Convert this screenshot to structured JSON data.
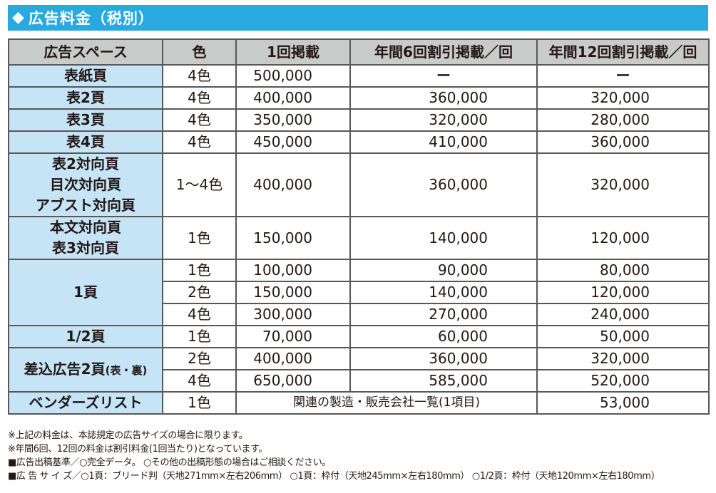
{
  "title": "広告料金（税別）",
  "icon": "diamond-icon",
  "colors": {
    "title_bar": "#29a9e0",
    "header_bg": "#c9caca",
    "space_bg": "#c5e4f6"
  },
  "headers": [
    "広告スペース",
    "色",
    "1回掲載",
    "年間6回割引掲載／回",
    "年間12回割引掲載／回"
  ],
  "rows": {
    "hyoshi": {
      "space": "表紙頁",
      "color": "4色",
      "p1": "500,000",
      "p6": "ー",
      "p12": "ー"
    },
    "hyo2": {
      "space": "表2頁",
      "color": "4色",
      "p1": "400,000",
      "p6": "360,000",
      "p12": "320,000"
    },
    "hyo3": {
      "space": "表3頁",
      "color": "4色",
      "p1": "350,000",
      "p6": "320,000",
      "p12": "280,000"
    },
    "hyo4": {
      "space": "表4頁",
      "color": "4色",
      "p1": "450,000",
      "p6": "410,000",
      "p12": "360,000"
    },
    "taiko": {
      "space_lines": [
        "表2対向頁",
        "目次対向頁",
        "アブスト対向頁"
      ],
      "color": "1〜4色",
      "p1": "400,000",
      "p6": "360,000",
      "p12": "320,000"
    },
    "honbun": {
      "space_lines": [
        "本文対向頁",
        "表3対向頁"
      ],
      "color": "1色",
      "p1": "150,000",
      "p6": "140,000",
      "p12": "120,000"
    },
    "page1": {
      "space": "1頁",
      "sub": [
        {
          "color": "1色",
          "p1": "100,000",
          "p6": "90,000",
          "p12": "80,000"
        },
        {
          "color": "2色",
          "p1": "150,000",
          "p6": "140,000",
          "p12": "120,000"
        },
        {
          "color": "4色",
          "p1": "300,000",
          "p6": "270,000",
          "p12": "240,000"
        }
      ]
    },
    "half": {
      "space": "1/2頁",
      "color": "1色",
      "p1": "70,000",
      "p6": "60,000",
      "p12": "50,000"
    },
    "insert": {
      "space": "差込広告2頁",
      "space_small": "(表・裏)",
      "sub": [
        {
          "color": "2色",
          "p1": "400,000",
          "p6": "360,000",
          "p12": "320,000"
        },
        {
          "color": "4色",
          "p1": "650,000",
          "p6": "585,000",
          "p12": "520,000"
        }
      ]
    },
    "vendor": {
      "space": "ベンダーズリスト",
      "color": "1色",
      "merged": "関連の製造・販売会社一覧(1項目)",
      "p12": "53,000"
    }
  },
  "notes": [
    "※上記の料金は、本誌規定の広告サイズの場合に限ります。",
    "※年間6回、12回の料金は割引料金(1回当たり)となっています。",
    "■広告出稿基準／○完全データ。 ○その他の出稿形態の場合はご相談ください。",
    "■広 告 サ イ ズ／○1頁：ブリード判（天地271mm×左右206mm） ○1頁：枠付（天地245mm×左右180mm） ○1/2頁：枠付（天地120mm×左右180mm）"
  ]
}
